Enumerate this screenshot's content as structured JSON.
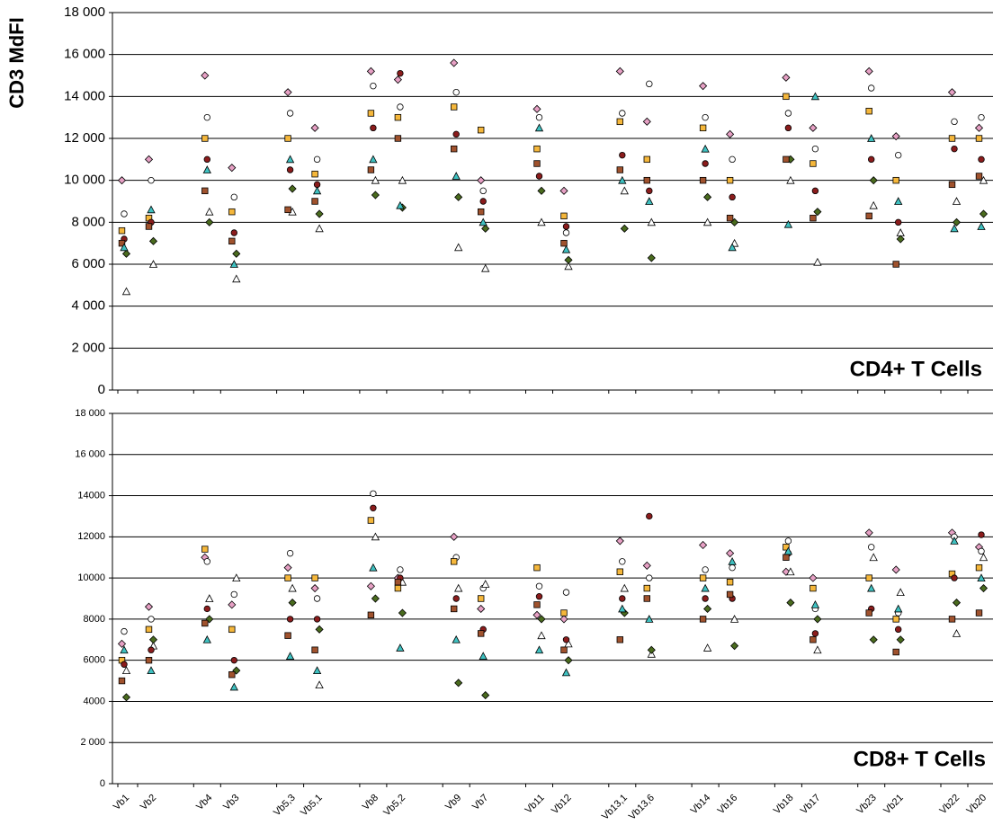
{
  "chart_data": [
    {
      "type": "scatter",
      "title": "CD4+ T Cells",
      "y_label": "CD3 MdFI",
      "ylim": [
        0,
        18000
      ],
      "yticks": [
        {
          "value": 0,
          "label": "0"
        },
        {
          "value": 2000,
          "label": "2 000"
        },
        {
          "value": 4000,
          "label": "4 000"
        },
        {
          "value": 6000,
          "label": "6 000"
        },
        {
          "value": 8000,
          "label": "8 000"
        },
        {
          "value": 10000,
          "label": "10 000"
        },
        {
          "value": 12000,
          "label": "12 000"
        },
        {
          "value": 14000,
          "label": "14 000"
        },
        {
          "value": 16000,
          "label": "16 000"
        },
        {
          "value": 18000,
          "label": "18 000"
        }
      ],
      "grid": true,
      "series": [
        {
          "color": "#e6a0c4",
          "marker": "diamond",
          "values": [
            10000,
            11000,
            15000,
            10600,
            14200,
            12500,
            15200,
            14800,
            15600,
            10000,
            13400,
            9500,
            15200,
            12800,
            14500,
            12200,
            14900,
            12500,
            15200,
            12100,
            14200,
            12500
          ]
        },
        {
          "color": "#ffffff",
          "marker": "circle",
          "values": [
            8400,
            10000,
            13000,
            9200,
            13200,
            11000,
            14500,
            13500,
            14200,
            9500,
            13000,
            7500,
            13200,
            14600,
            13000,
            11000,
            13200,
            11500,
            14400,
            11200,
            12800,
            13000
          ]
        },
        {
          "color": "#ffffff",
          "marker": "triangle",
          "values": [
            4700,
            6000,
            8500,
            5300,
            8500,
            7700,
            10000,
            10000,
            6800,
            5800,
            8000,
            5900,
            9500,
            8000,
            8000,
            7000,
            10000,
            6100,
            8800,
            7500,
            9000,
            10000
          ]
        },
        {
          "color": "#f5b73b",
          "marker": "square",
          "values": [
            7600,
            8200,
            12000,
            8500,
            12000,
            10300,
            13200,
            13000,
            13500,
            12400,
            11500,
            8300,
            12800,
            11000,
            12500,
            10000,
            14000,
            10800,
            13300,
            10000,
            12000,
            12000
          ]
        },
        {
          "color": "#8b1c1c",
          "marker": "circle",
          "values": [
            7200,
            8000,
            11000,
            7500,
            10500,
            9800,
            12500,
            15100,
            12200,
            9000,
            10200,
            7800,
            11200,
            9500,
            10800,
            9200,
            12500,
            9500,
            11000,
            8000,
            11500,
            11000
          ]
        },
        {
          "color": "#4a6b1e",
          "marker": "diamond",
          "values": [
            6500,
            7100,
            8000,
            6500,
            9600,
            8400,
            9300,
            8700,
            9200,
            7700,
            9500,
            6200,
            7700,
            6300,
            9200,
            8000,
            11000,
            8500,
            10000,
            7200,
            8000,
            8400
          ]
        },
        {
          "color": "#a0522d",
          "marker": "square",
          "values": [
            7000,
            7800,
            9500,
            7100,
            8600,
            9000,
            10500,
            12000,
            11500,
            8500,
            10800,
            7000,
            10500,
            10000,
            10000,
            8200,
            11000,
            8200,
            8300,
            6000,
            9800,
            10200
          ]
        },
        {
          "color": "#3fc1c1",
          "marker": "triangle",
          "values": [
            6800,
            8600,
            10500,
            6000,
            11000,
            9500,
            11000,
            8800,
            10200,
            8000,
            12500,
            6700,
            10000,
            9000,
            11500,
            6800,
            7900,
            14000,
            12000,
            9000,
            7700,
            7800
          ]
        }
      ]
    },
    {
      "type": "scatter",
      "title": "CD8+ T Cells",
      "categories": [
        "Vb1",
        "Vb2",
        "Vb4",
        "Vb3",
        "Vb5,3",
        "Vb5,1",
        "Vb8",
        "Vb5,2",
        "Vb9",
        "Vb7",
        "Vb11",
        "Vb12",
        "Vb13,1",
        "Vb13,6",
        "Vb14",
        "Vb16",
        "Vb18",
        "Vb17",
        "Vb23",
        "Vb21",
        "Vb22",
        "Vb20"
      ],
      "ylim": [
        0,
        18000
      ],
      "yticks": [
        0,
        {
          "value": 2000,
          "label": "2 000"
        },
        4000,
        6000,
        8000,
        10000,
        12000,
        14000,
        {
          "value": 16000,
          "label": "16 000"
        },
        {
          "value": 18000,
          "label": "18 000"
        }
      ],
      "grid": true,
      "series": [
        {
          "color": "#e6a0c4",
          "marker": "diamond",
          "values": [
            6800,
            8600,
            11000,
            8700,
            10500,
            9500,
            9600,
            10000,
            12000,
            8500,
            8200,
            8000,
            11800,
            10600,
            11600,
            11200,
            10300,
            10000,
            12200,
            10400,
            12200,
            11500
          ]
        },
        {
          "color": "#ffffff",
          "marker": "circle",
          "values": [
            7400,
            8000,
            10800,
            9200,
            11200,
            9000,
            14100,
            10400,
            11000,
            9500,
            9600,
            9300,
            10800,
            10000,
            10400,
            10500,
            11800,
            8500,
            11500,
            8300,
            12000,
            11300
          ]
        },
        {
          "color": "#ffffff",
          "marker": "triangle",
          "values": [
            5500,
            6700,
            9000,
            10000,
            9500,
            4800,
            12000,
            9800,
            9500,
            9700,
            7200,
            6800,
            9500,
            6300,
            6600,
            8000,
            10300,
            6500,
            11000,
            9300,
            7300,
            11000
          ]
        },
        {
          "color": "#f5b73b",
          "marker": "square",
          "values": [
            6000,
            7500,
            11400,
            7500,
            10000,
            10000,
            12800,
            9500,
            10800,
            9000,
            10500,
            8300,
            10300,
            9500,
            10000,
            9800,
            11500,
            9500,
            10000,
            8000,
            10200,
            10500
          ]
        },
        {
          "color": "#8b1c1c",
          "marker": "circle",
          "values": [
            5800,
            6500,
            8500,
            6000,
            8000,
            8000,
            13400,
            10000,
            9000,
            7500,
            9100,
            7000,
            9000,
            13000,
            9000,
            9000,
            11200,
            7300,
            8500,
            7500,
            10000,
            12100
          ]
        },
        {
          "color": "#4a6b1e",
          "marker": "diamond",
          "values": [
            4200,
            7000,
            8000,
            5500,
            8800,
            7500,
            9000,
            8300,
            4900,
            4300,
            8000,
            6000,
            8300,
            6500,
            8500,
            6700,
            8800,
            8000,
            7000,
            7000,
            8800,
            9500
          ]
        },
        {
          "color": "#a0522d",
          "marker": "square",
          "values": [
            5000,
            6000,
            7800,
            5300,
            7200,
            6500,
            8200,
            9800,
            8500,
            7300,
            8700,
            6500,
            7000,
            9000,
            8000,
            9200,
            11000,
            7000,
            8300,
            6400,
            8000,
            8300
          ]
        },
        {
          "color": "#3fc1c1",
          "marker": "triangle",
          "values": [
            6500,
            5500,
            7000,
            4700,
            6200,
            5500,
            10500,
            6600,
            7000,
            6200,
            6500,
            5400,
            8500,
            8000,
            9500,
            10800,
            11300,
            8700,
            9500,
            8500,
            11800,
            10000
          ]
        }
      ]
    }
  ]
}
